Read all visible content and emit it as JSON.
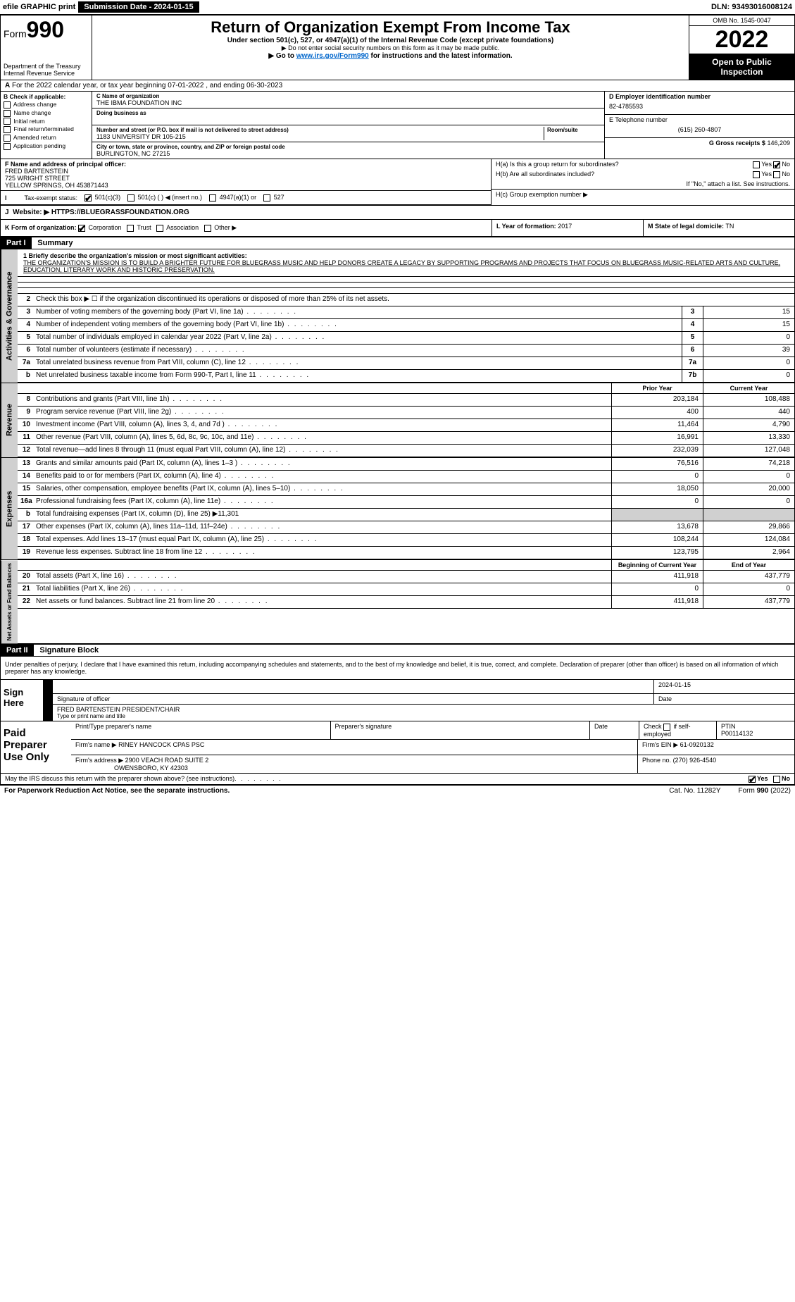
{
  "topbar": {
    "efile_label": "efile GRAPHIC print",
    "submission_label": "Submission Date - 2024-01-15",
    "dln": "DLN: 93493016008124"
  },
  "header": {
    "form_prefix": "Form",
    "form_number": "990",
    "dept": "Department of the Treasury",
    "irs": "Internal Revenue Service",
    "title": "Return of Organization Exempt From Income Tax",
    "subtitle": "Under section 501(c), 527, or 4947(a)(1) of the Internal Revenue Code (except private foundations)",
    "note1": "▶ Do not enter social security numbers on this form as it may be made public.",
    "note2_prefix": "▶ Go to ",
    "note2_link": "www.irs.gov/Form990",
    "note2_suffix": " for instructions and the latest information.",
    "omb": "OMB No. 1545-0047",
    "year": "2022",
    "open": "Open to Public Inspection"
  },
  "line_a": "For the 2022 calendar year, or tax year beginning 07-01-2022    , and ending 06-30-2023",
  "box_b": {
    "title": "B Check if applicable:",
    "items": [
      "Address change",
      "Name change",
      "Initial return",
      "Final return/terminated",
      "Amended return",
      "Application pending"
    ]
  },
  "box_c": {
    "name_label": "C Name of organization",
    "name": "THE IBMA FOUNDATION INC",
    "dba_label": "Doing business as",
    "addr_label": "Number and street (or P.O. box if mail is not delivered to street address)",
    "room_label": "Room/suite",
    "addr": "1183 UNIVERSITY DR 105-215",
    "city_label": "City or town, state or province, country, and ZIP or foreign postal code",
    "city": "BURLINGTON, NC  27215"
  },
  "box_d": {
    "label": "D Employer identification number",
    "value": "82-4785593"
  },
  "box_e": {
    "label": "E Telephone number",
    "value": "(615) 260-4807"
  },
  "box_g": {
    "label": "G Gross receipts $",
    "value": "146,209"
  },
  "box_f": {
    "label": "F  Name and address of principal officer:",
    "name": "FRED BARTENSTEIN",
    "street": "725 WRIGHT STREET",
    "city": "YELLOW SPRINGS, OH  453871443"
  },
  "box_h": {
    "a_label": "H(a)  Is this a group return for subordinates?",
    "b_label": "H(b)  Are all subordinates included?",
    "b_note": "If \"No,\" attach a list. See instructions.",
    "c_label": "H(c)  Group exemption number ▶",
    "yes": "Yes",
    "no": "No"
  },
  "tax_exempt": {
    "label": "Tax-exempt status:",
    "opt1": "501(c)(3)",
    "opt2": "501(c) (   ) ◀ (insert no.)",
    "opt3": "4947(a)(1) or",
    "opt4": "527"
  },
  "line_i": {
    "label": "I"
  },
  "line_j": {
    "label": "J",
    "text": "Website: ▶",
    "url": "HTTPS://BLUEGRASSFOUNDATION.ORG"
  },
  "line_k": {
    "label": "K Form of organization:",
    "opts": [
      "Corporation",
      "Trust",
      "Association",
      "Other ▶"
    ]
  },
  "line_l": {
    "label": "L Year of formation:",
    "value": "2017"
  },
  "line_m": {
    "label": "M State of legal domicile:",
    "value": "TN"
  },
  "part1": {
    "header": "Part I",
    "title": "Summary",
    "mission_label": "1  Briefly describe the organization's mission or most significant activities:",
    "mission": "THE ORGANIZATION'S MISSION IS TO BUILD A BRIGHTER FUTURE FOR BLUEGRASS MUSIC AND HELP DONORS CREATE A LEGACY BY SUPPORTING PROGRAMS AND PROJECTS THAT FOCUS ON BLUEGRASS MUSIC-RELATED ARTS AND CULTURE, EDUCATION, LITERARY WORK AND HISTORIC PRESERVATION."
  },
  "governance": {
    "side": "Activities & Governance",
    "rows": [
      {
        "n": "2",
        "d": "Check this box ▶ ☐  if the organization discontinued its operations or disposed of more than 25% of its net assets."
      },
      {
        "n": "3",
        "d": "Number of voting members of the governing body (Part VI, line 1a)",
        "box": "3",
        "v": "15"
      },
      {
        "n": "4",
        "d": "Number of independent voting members of the governing body (Part VI, line 1b)",
        "box": "4",
        "v": "15"
      },
      {
        "n": "5",
        "d": "Total number of individuals employed in calendar year 2022 (Part V, line 2a)",
        "box": "5",
        "v": "0"
      },
      {
        "n": "6",
        "d": "Total number of volunteers (estimate if necessary)",
        "box": "6",
        "v": "39"
      },
      {
        "n": "7a",
        "d": "Total unrelated business revenue from Part VIII, column (C), line 12",
        "box": "7a",
        "v": "0"
      },
      {
        "n": "b",
        "d": "Net unrelated business taxable income from Form 990-T, Part I, line 11",
        "box": "7b",
        "v": "0"
      }
    ]
  },
  "revenue": {
    "side": "Revenue",
    "prior": "Prior Year",
    "current": "Current Year",
    "rows": [
      {
        "n": "8",
        "d": "Contributions and grants (Part VIII, line 1h)",
        "p": "203,184",
        "c": "108,488"
      },
      {
        "n": "9",
        "d": "Program service revenue (Part VIII, line 2g)",
        "p": "400",
        "c": "440"
      },
      {
        "n": "10",
        "d": "Investment income (Part VIII, column (A), lines 3, 4, and 7d )",
        "p": "11,464",
        "c": "4,790"
      },
      {
        "n": "11",
        "d": "Other revenue (Part VIII, column (A), lines 5, 6d, 8c, 9c, 10c, and 11e)",
        "p": "16,991",
        "c": "13,330"
      },
      {
        "n": "12",
        "d": "Total revenue—add lines 8 through 11 (must equal Part VIII, column (A), line 12)",
        "p": "232,039",
        "c": "127,048"
      }
    ]
  },
  "expenses": {
    "side": "Expenses",
    "rows": [
      {
        "n": "13",
        "d": "Grants and similar amounts paid (Part IX, column (A), lines 1–3 )",
        "p": "76,516",
        "c": "74,218"
      },
      {
        "n": "14",
        "d": "Benefits paid to or for members (Part IX, column (A), line 4)",
        "p": "0",
        "c": "0"
      },
      {
        "n": "15",
        "d": "Salaries, other compensation, employee benefits (Part IX, column (A), lines 5–10)",
        "p": "18,050",
        "c": "20,000"
      },
      {
        "n": "16a",
        "d": "Professional fundraising fees (Part IX, column (A), line 11e)",
        "p": "0",
        "c": "0"
      },
      {
        "n": "b",
        "d": "Total fundraising expenses (Part IX, column (D), line 25) ▶11,301",
        "shade": true
      },
      {
        "n": "17",
        "d": "Other expenses (Part IX, column (A), lines 11a–11d, 11f–24e)",
        "p": "13,678",
        "c": "29,866"
      },
      {
        "n": "18",
        "d": "Total expenses. Add lines 13–17 (must equal Part IX, column (A), line 25)",
        "p": "108,244",
        "c": "124,084"
      },
      {
        "n": "19",
        "d": "Revenue less expenses. Subtract line 18 from line 12",
        "p": "123,795",
        "c": "2,964"
      }
    ]
  },
  "netassets": {
    "side": "Net Assets or Fund Balances",
    "begin": "Beginning of Current Year",
    "end": "End of Year",
    "rows": [
      {
        "n": "20",
        "d": "Total assets (Part X, line 16)",
        "p": "411,918",
        "c": "437,779"
      },
      {
        "n": "21",
        "d": "Total liabilities (Part X, line 26)",
        "p": "0",
        "c": "0"
      },
      {
        "n": "22",
        "d": "Net assets or fund balances. Subtract line 21 from line 20",
        "p": "411,918",
        "c": "437,779"
      }
    ]
  },
  "part2": {
    "header": "Part II",
    "title": "Signature Block",
    "penalty": "Under penalties of perjury, I declare that I have examined this return, including accompanying schedules and statements, and to the best of my knowledge and belief, it is true, correct, and complete. Declaration of preparer (other than officer) is based on all information of which preparer has any knowledge."
  },
  "sign": {
    "label": "Sign Here",
    "sig_label": "Signature of officer",
    "date_label": "Date",
    "date": "2024-01-15",
    "name": "FRED BARTENSTEIN  PRESIDENT/CHAIR",
    "name_label": "Type or print name and title"
  },
  "paid": {
    "label": "Paid Preparer Use Only",
    "h1": "Print/Type preparer's name",
    "h2": "Preparer's signature",
    "h3": "Date",
    "h4_a": "Check",
    "h4_b": "if self-employed",
    "h5": "PTIN",
    "ptin": "P00114132",
    "firm_label": "Firm's name    ▶",
    "firm": "RINEY HANCOCK CPAS PSC",
    "ein_label": "Firm's EIN ▶",
    "ein": "61-0920132",
    "addr_label": "Firm's address ▶",
    "addr1": "2900 VEACH ROAD SUITE 2",
    "addr2": "OWENSBORO, KY  42303",
    "phone_label": "Phone no.",
    "phone": "(270) 926-4540"
  },
  "footer": {
    "discuss": "May the IRS discuss this return with the preparer shown above? (see instructions)",
    "yes": "Yes",
    "no": "No",
    "paperwork": "For Paperwork Reduction Act Notice, see the separate instructions.",
    "cat": "Cat. No. 11282Y",
    "form": "Form 990 (2022)"
  }
}
